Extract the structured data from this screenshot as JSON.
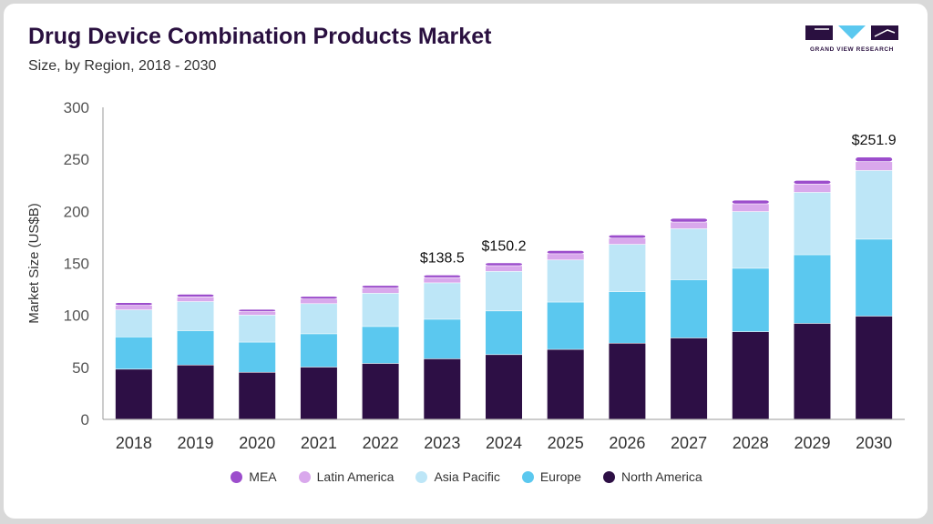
{
  "header": {
    "title": "Drug Device Combination Products Market",
    "subtitle": "Size, by Region, 2018 - 2030"
  },
  "logo": {
    "text": "GRAND VIEW RESEARCH",
    "icon": "grand-view-research-logo"
  },
  "chart_data": {
    "type": "bar",
    "stacked": true,
    "categories": [
      "2018",
      "2019",
      "2020",
      "2021",
      "2022",
      "2023",
      "2024",
      "2025",
      "2026",
      "2027",
      "2028",
      "2029",
      "2030"
    ],
    "series": [
      {
        "name": "North America",
        "color": "#2d0f45",
        "values": [
          48,
          52,
          45,
          50,
          53.5,
          58,
          62,
          67,
          73,
          78,
          84,
          92,
          99
        ]
      },
      {
        "name": "Europe",
        "color": "#5bc8ef",
        "values": [
          31,
          33,
          29,
          32,
          35.5,
          38,
          42,
          45.5,
          49.5,
          56,
          61,
          66,
          74
        ]
      },
      {
        "name": "Asia Pacific",
        "color": "#bde6f7",
        "values": [
          26,
          28,
          26,
          29,
          32,
          35,
          38,
          40.5,
          45.5,
          49,
          54.5,
          60,
          66
        ]
      },
      {
        "name": "Latin America",
        "color": "#d9a8ec",
        "values": [
          4.5,
          4.5,
          3.5,
          4.5,
          5,
          5,
          5.5,
          6,
          6,
          6.5,
          7.5,
          8,
          8.5
        ]
      },
      {
        "name": "MEA",
        "color": "#9c4dcc",
        "values": [
          2.5,
          2.5,
          2,
          2.5,
          2.5,
          2.5,
          2.7,
          3,
          3,
          3.5,
          3.5,
          3.5,
          4.4
        ]
      }
    ],
    "data_labels": [
      {
        "category": "2023",
        "text": "$138.5"
      },
      {
        "category": "2024",
        "text": "$150.2"
      },
      {
        "category": "2030",
        "text": "$251.9"
      }
    ],
    "ylabel": "Market Size (US$B)",
    "xlabel": "",
    "ylim": [
      0,
      300
    ],
    "yticks": [
      0,
      50,
      100,
      150,
      200,
      250,
      300
    ],
    "grid": false,
    "legend": {
      "position": "bottom",
      "order": [
        "MEA",
        "Latin America",
        "Asia Pacific",
        "Europe",
        "North America"
      ]
    }
  }
}
